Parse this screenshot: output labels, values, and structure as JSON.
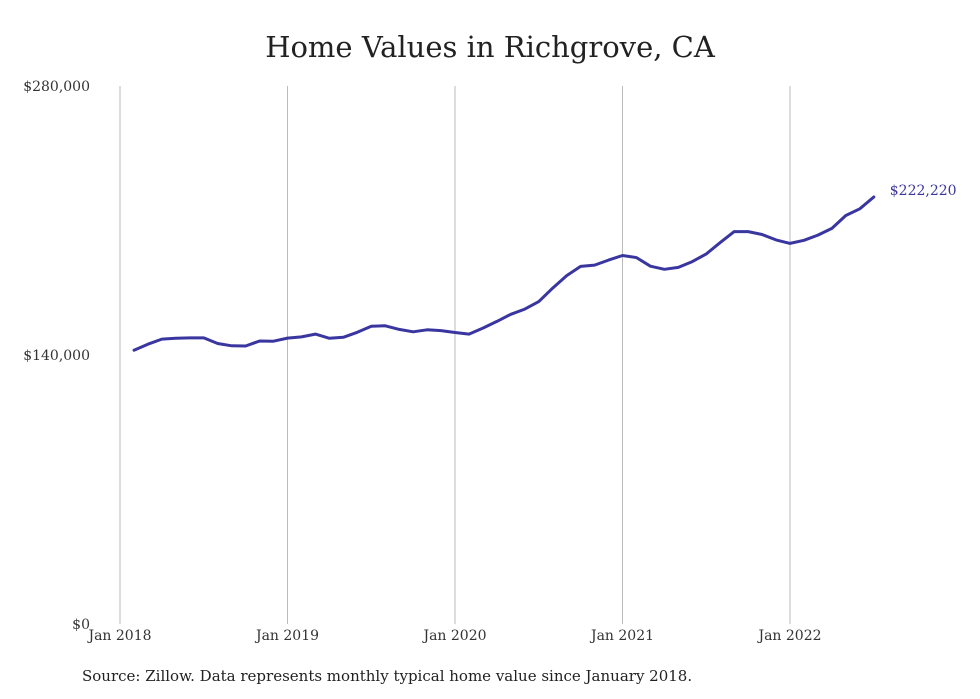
{
  "chart_data": {
    "type": "line",
    "title": "Home Values in Richgrove, CA",
    "xlabel": "",
    "ylabel": "",
    "ylim": [
      0,
      280000
    ],
    "y_ticks": [
      "$280,000",
      "$140,000",
      "$0"
    ],
    "y_tick_values": [
      280000,
      140000,
      0
    ],
    "x_ticks": [
      "Jan 2018",
      "Jan 2019",
      "Jan 2020",
      "Jan 2021",
      "Jan 2022"
    ],
    "x_tick_values": [
      "2018-01",
      "2019-01",
      "2020-01",
      "2021-01",
      "2022-01"
    ],
    "grid": "vertical",
    "legend": "none",
    "line_color": "#3a36a0",
    "end_label": "$222,220",
    "series": [
      {
        "x": [
          "2018-02",
          "2018-03",
          "2018-04",
          "2018-05",
          "2018-06",
          "2018-07",
          "2018-08",
          "2018-09",
          "2018-10",
          "2018-11",
          "2018-12",
          "2019-01",
          "2019-02",
          "2019-03",
          "2019-04",
          "2019-05",
          "2019-06",
          "2019-07",
          "2019-08",
          "2019-09",
          "2019-10",
          "2019-11",
          "2019-12",
          "2020-01",
          "2020-02",
          "2020-03",
          "2020-04",
          "2020-05",
          "2020-06",
          "2020-07",
          "2020-08",
          "2020-09",
          "2020-10",
          "2020-11",
          "2020-12",
          "2021-01",
          "2021-02",
          "2021-03",
          "2021-04",
          "2021-05",
          "2021-06",
          "2021-07",
          "2021-08",
          "2021-09",
          "2021-10",
          "2021-11",
          "2021-12",
          "2022-01",
          "2022-02",
          "2022-03",
          "2022-04",
          "2022-05",
          "2022-06",
          "2022-07"
        ],
        "values": [
          142500,
          145600,
          148300,
          148700,
          148900,
          148900,
          146000,
          144800,
          144700,
          147300,
          147200,
          148800,
          149400,
          150900,
          148700,
          149200,
          151800,
          155000,
          155200,
          153300,
          152100,
          153100,
          152700,
          151700,
          150900,
          154000,
          157500,
          161200,
          163900,
          167800,
          174800,
          181300,
          186100,
          186800,
          189400,
          191800,
          190700,
          186200,
          184600,
          185600,
          188600,
          192600,
          198500,
          204200,
          204200,
          202700,
          199900,
          198100,
          199700,
          202400,
          205900,
          212600,
          216100,
          222220
        ]
      }
    ]
  },
  "source_note": "Source: Zillow. Data represents monthly typical home value since January 2018."
}
